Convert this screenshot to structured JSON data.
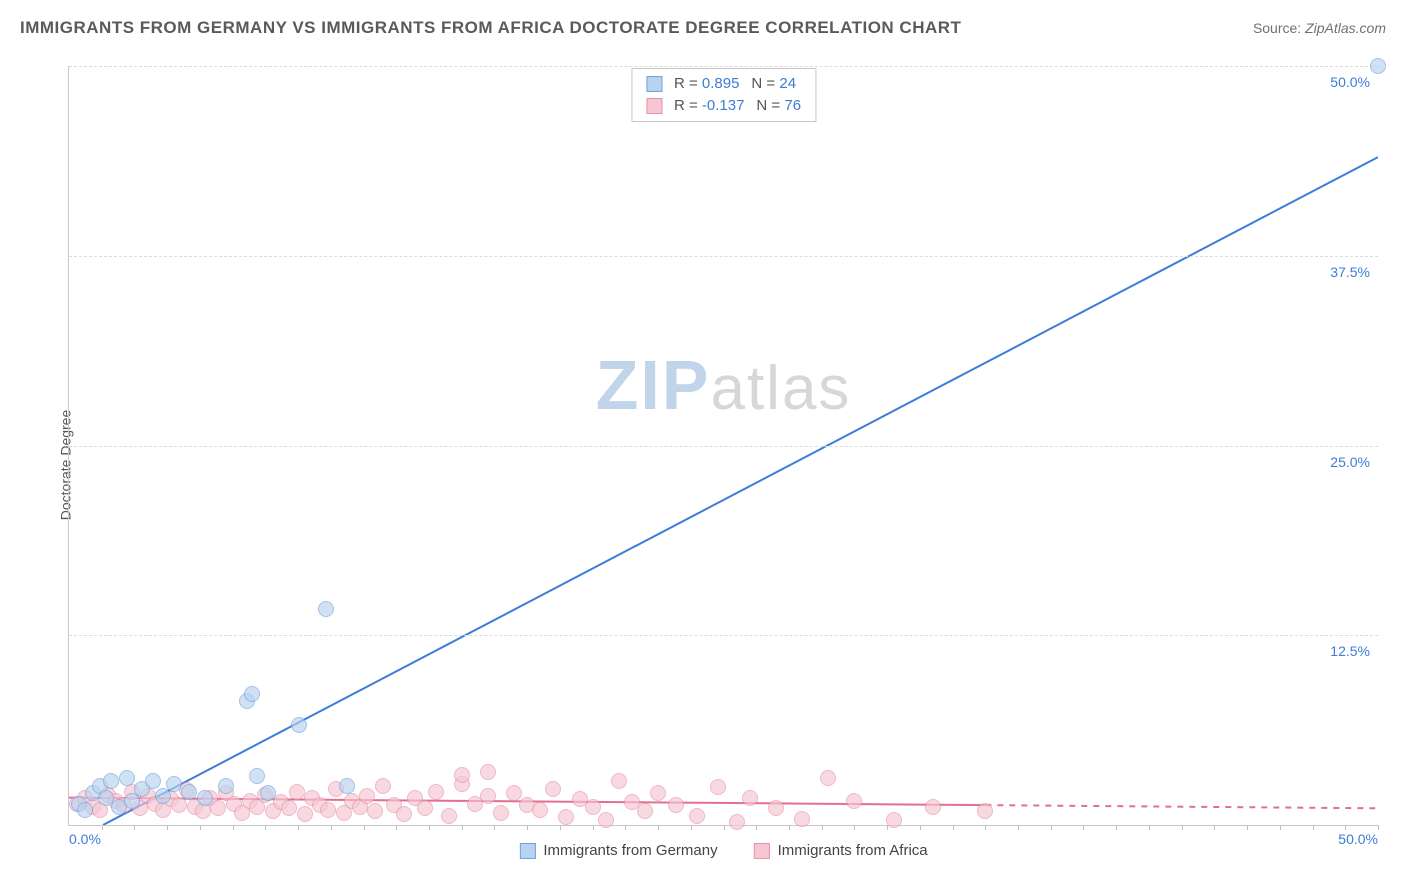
{
  "header": {
    "title": "IMMIGRANTS FROM GERMANY VS IMMIGRANTS FROM AFRICA DOCTORATE DEGREE CORRELATION CHART",
    "source_label": "Source:",
    "source_value": "ZipAtlas.com"
  },
  "ylabel": "Doctorate Degree",
  "watermark": {
    "zip": "ZIP",
    "atlas": "atlas"
  },
  "axes": {
    "x_min": 0,
    "x_max": 50,
    "x_min_label": "0.0%",
    "x_max_label": "50.0%",
    "y_min": 0,
    "y_max": 50,
    "y_ticks": [
      0,
      12.5,
      25,
      37.5,
      50
    ],
    "y_tick_labels": [
      "",
      "12.5%",
      "25.0%",
      "37.5%",
      "50.0%"
    ],
    "grid_color": "#dcdcdc",
    "axis_color": "#c8c8c8",
    "tick_label_color": "#3b7dd8",
    "x_label_color": "#3b7dd8",
    "x_minor_ticks": 40
  },
  "legend_top": [
    {
      "swatch_fill": "#b8d2ef",
      "swatch_border": "#6fa4dd",
      "r": "0.895",
      "n": "24"
    },
    {
      "swatch_fill": "#f6c6d2",
      "swatch_border": "#e693ab",
      "r": "-0.137",
      "n": "76"
    }
  ],
  "legend_bottom": [
    {
      "swatch_fill": "#b8d2ef",
      "swatch_border": "#6fa4dd",
      "label": "Immigrants from Germany"
    },
    {
      "swatch_fill": "#f6c6d2",
      "swatch_border": "#e693ab",
      "label": "Immigrants from Africa"
    }
  ],
  "series": {
    "germany": {
      "color_fill": "#b8d2ef",
      "color_stroke": "#6fa4dd",
      "marker_radius": 8,
      "fill_opacity": 0.65,
      "trend": {
        "x1": 1.3,
        "y1": 0.0,
        "x2": 50.0,
        "y2": 44.0,
        "color": "#3b7dd8",
        "width": 2
      },
      "points": [
        [
          0.4,
          1.4
        ],
        [
          0.6,
          1.0
        ],
        [
          0.9,
          2.1
        ],
        [
          1.2,
          2.6
        ],
        [
          1.4,
          1.8
        ],
        [
          1.6,
          2.9
        ],
        [
          1.9,
          1.2
        ],
        [
          2.2,
          3.1
        ],
        [
          2.4,
          1.6
        ],
        [
          2.8,
          2.4
        ],
        [
          3.2,
          2.9
        ],
        [
          3.6,
          1.9
        ],
        [
          4.0,
          2.7
        ],
        [
          4.6,
          2.2
        ],
        [
          5.2,
          1.8
        ],
        [
          6.0,
          2.6
        ],
        [
          6.8,
          8.2
        ],
        [
          7.0,
          8.6
        ],
        [
          7.2,
          3.2
        ],
        [
          7.6,
          2.1
        ],
        [
          8.8,
          6.6
        ],
        [
          9.8,
          14.2
        ],
        [
          10.6,
          2.6
        ],
        [
          50.0,
          50.0
        ]
      ]
    },
    "africa": {
      "color_fill": "#f6c6d2",
      "color_stroke": "#e693ab",
      "marker_radius": 8,
      "fill_opacity": 0.65,
      "trend": {
        "x1": 0.0,
        "y1": 1.8,
        "x2": 50.0,
        "y2": 1.1,
        "color": "#e36f90",
        "width": 2,
        "dashed_tail_x": 35
      },
      "points": [
        [
          0.3,
          1.4
        ],
        [
          0.6,
          1.8
        ],
        [
          0.9,
          1.2
        ],
        [
          1.2,
          1.0
        ],
        [
          1.5,
          2.0
        ],
        [
          1.8,
          1.6
        ],
        [
          2.1,
          1.3
        ],
        [
          2.4,
          2.2
        ],
        [
          2.7,
          1.1
        ],
        [
          3.0,
          1.9
        ],
        [
          3.3,
          1.4
        ],
        [
          3.6,
          1.0
        ],
        [
          3.9,
          1.7
        ],
        [
          4.2,
          1.3
        ],
        [
          4.5,
          2.3
        ],
        [
          4.8,
          1.2
        ],
        [
          5.1,
          0.9
        ],
        [
          5.4,
          1.8
        ],
        [
          5.7,
          1.1
        ],
        [
          6.0,
          2.1
        ],
        [
          6.3,
          1.4
        ],
        [
          6.6,
          0.8
        ],
        [
          6.9,
          1.6
        ],
        [
          7.2,
          1.2
        ],
        [
          7.5,
          2.0
        ],
        [
          7.8,
          0.9
        ],
        [
          8.1,
          1.5
        ],
        [
          8.4,
          1.1
        ],
        [
          8.7,
          2.2
        ],
        [
          9.0,
          0.7
        ],
        [
          9.3,
          1.8
        ],
        [
          9.6,
          1.3
        ],
        [
          9.9,
          1.0
        ],
        [
          10.2,
          2.4
        ],
        [
          10.5,
          0.8
        ],
        [
          10.8,
          1.6
        ],
        [
          11.1,
          1.2
        ],
        [
          11.4,
          1.9
        ],
        [
          11.7,
          0.9
        ],
        [
          12.0,
          2.6
        ],
        [
          12.4,
          1.3
        ],
        [
          12.8,
          0.7
        ],
        [
          13.2,
          1.8
        ],
        [
          13.6,
          1.1
        ],
        [
          14.0,
          2.2
        ],
        [
          14.5,
          0.6
        ],
        [
          15.0,
          2.7
        ],
        [
          15.0,
          3.3
        ],
        [
          15.5,
          1.4
        ],
        [
          16.0,
          1.9
        ],
        [
          16.0,
          3.5
        ],
        [
          16.5,
          0.8
        ],
        [
          17.0,
          2.1
        ],
        [
          17.5,
          1.3
        ],
        [
          18.0,
          1.0
        ],
        [
          18.5,
          2.4
        ],
        [
          19.0,
          0.5
        ],
        [
          19.5,
          1.7
        ],
        [
          20.0,
          1.2
        ],
        [
          20.5,
          0.3
        ],
        [
          21.0,
          2.9
        ],
        [
          21.5,
          1.5
        ],
        [
          22.0,
          0.9
        ],
        [
          22.5,
          2.1
        ],
        [
          23.2,
          1.3
        ],
        [
          24.0,
          0.6
        ],
        [
          24.8,
          2.5
        ],
        [
          25.5,
          0.2
        ],
        [
          26.0,
          1.8
        ],
        [
          27.0,
          1.1
        ],
        [
          28.0,
          0.4
        ],
        [
          29.0,
          3.1
        ],
        [
          30.0,
          1.6
        ],
        [
          31.5,
          0.3
        ],
        [
          33.0,
          1.2
        ],
        [
          35.0,
          0.9
        ]
      ]
    }
  }
}
